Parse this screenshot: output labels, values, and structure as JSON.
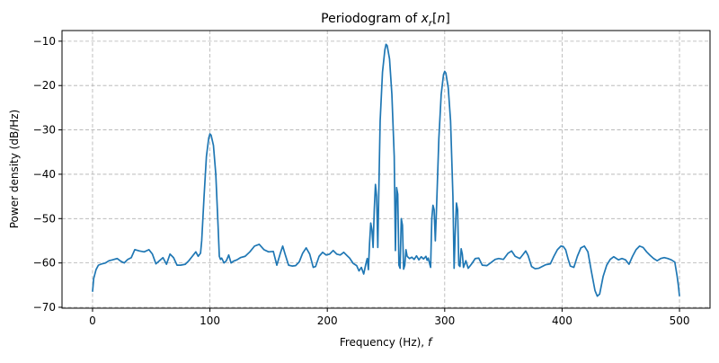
{
  "chart_data": {
    "type": "line",
    "title": "Periodogram of x_r[n]",
    "title_parts": {
      "prefix": "Periodogram of ",
      "var": "x",
      "sub": "r",
      "bracket_open": "[",
      "arg": "n",
      "bracket_close": "]"
    },
    "xlabel": "Frequency (Hz), f",
    "xlabel_parts": {
      "text": "Frequency (Hz), ",
      "var": "f"
    },
    "ylabel": "Power density (dB/Hz)",
    "xlim": [
      -26,
      526
    ],
    "ylim": [
      -70.2,
      -7.6
    ],
    "xticks": [
      0,
      100,
      200,
      300,
      400,
      500
    ],
    "xtick_labels": [
      "0",
      "100",
      "200",
      "300",
      "400",
      "500"
    ],
    "yticks": [
      -10,
      -20,
      -30,
      -40,
      -50,
      -60,
      -70
    ],
    "ytick_labels": [
      "−10",
      "−20",
      "−30",
      "−40",
      "−50",
      "−60",
      "−70"
    ],
    "grid": true,
    "legend": null,
    "series": [
      {
        "name": "Periodogram",
        "color": "#1f77b4",
        "points": [
          [
            0,
            -66.5
          ],
          [
            1,
            -63.5
          ],
          [
            3,
            -61.5
          ],
          [
            5,
            -60.5
          ],
          [
            8,
            -60.2
          ],
          [
            11,
            -60.0
          ],
          [
            14,
            -59.5
          ],
          [
            17,
            -59.3
          ],
          [
            21,
            -59.0
          ],
          [
            24,
            -59.6
          ],
          [
            27,
            -60.0
          ],
          [
            30,
            -59.2
          ],
          [
            33,
            -58.8
          ],
          [
            36,
            -57.0
          ],
          [
            40,
            -57.3
          ],
          [
            44,
            -57.5
          ],
          [
            48,
            -57.0
          ],
          [
            51,
            -58.0
          ],
          [
            54,
            -60.2
          ],
          [
            57,
            -59.5
          ],
          [
            60,
            -58.8
          ],
          [
            63,
            -60.3
          ],
          [
            66,
            -58.0
          ],
          [
            69,
            -58.8
          ],
          [
            72,
            -60.5
          ],
          [
            75,
            -60.5
          ],
          [
            79,
            -60.3
          ],
          [
            82,
            -59.5
          ],
          [
            85,
            -58.5
          ],
          [
            88,
            -57.5
          ],
          [
            90,
            -58.5
          ],
          [
            92,
            -57.8
          ],
          [
            93,
            -55.0
          ],
          [
            95,
            -45.0
          ],
          [
            97,
            -36.0
          ],
          [
            99,
            -31.8
          ],
          [
            100,
            -30.9
          ],
          [
            101,
            -31.2
          ],
          [
            103,
            -33.5
          ],
          [
            105,
            -40.0
          ],
          [
            107,
            -52.0
          ],
          [
            108,
            -58.5
          ],
          [
            109,
            -59.2
          ],
          [
            110,
            -58.9
          ],
          [
            112,
            -60.0
          ],
          [
            114,
            -59.5
          ],
          [
            116,
            -58.2
          ],
          [
            118,
            -60.0
          ],
          [
            120,
            -59.6
          ],
          [
            123,
            -59.3
          ],
          [
            126,
            -58.8
          ],
          [
            130,
            -58.5
          ],
          [
            134,
            -57.5
          ],
          [
            138,
            -56.2
          ],
          [
            142,
            -55.8
          ],
          [
            146,
            -57.0
          ],
          [
            150,
            -57.5
          ],
          [
            154,
            -57.4
          ],
          [
            157,
            -60.5
          ],
          [
            160,
            -57.8
          ],
          [
            162,
            -56.2
          ],
          [
            164,
            -58.0
          ],
          [
            167,
            -60.5
          ],
          [
            170,
            -60.7
          ],
          [
            173,
            -60.6
          ],
          [
            176,
            -59.8
          ],
          [
            179,
            -57.8
          ],
          [
            182,
            -56.6
          ],
          [
            185,
            -58.0
          ],
          [
            188,
            -61.0
          ],
          [
            190,
            -60.8
          ],
          [
            193,
            -58.5
          ],
          [
            196,
            -57.6
          ],
          [
            199,
            -58.2
          ],
          [
            202,
            -58.0
          ],
          [
            205,
            -57.2
          ],
          [
            208,
            -58.0
          ],
          [
            211,
            -58.2
          ],
          [
            214,
            -57.6
          ],
          [
            217,
            -58.4
          ],
          [
            219,
            -58.9
          ],
          [
            222,
            -60.1
          ],
          [
            225,
            -60.6
          ],
          [
            227,
            -61.8
          ],
          [
            229,
            -61.0
          ],
          [
            231,
            -62.5
          ],
          [
            233,
            -60.0
          ],
          [
            234,
            -59.0
          ],
          [
            235,
            -61.5
          ],
          [
            236,
            -55.5
          ],
          [
            237,
            -51.0
          ],
          [
            238,
            -52.5
          ],
          [
            239,
            -56.5
          ],
          [
            240,
            -48.0
          ],
          [
            241,
            -42.3
          ],
          [
            242,
            -45.0
          ],
          [
            243,
            -56.5
          ],
          [
            244,
            -42.0
          ],
          [
            245,
            -28.0
          ],
          [
            247,
            -17.0
          ],
          [
            249,
            -12.0
          ],
          [
            250,
            -10.7
          ],
          [
            251,
            -11.0
          ],
          [
            253,
            -14.0
          ],
          [
            255,
            -22.0
          ],
          [
            257,
            -36.0
          ],
          [
            258,
            -57.2
          ],
          [
            259,
            -43.0
          ],
          [
            260,
            -44.5
          ],
          [
            261,
            -60.5
          ],
          [
            262,
            -61.2
          ],
          [
            263,
            -50.0
          ],
          [
            264,
            -51.5
          ],
          [
            265,
            -61.4
          ],
          [
            266,
            -60.5
          ],
          [
            267,
            -57.0
          ],
          [
            268,
            -58.5
          ],
          [
            270,
            -59.0
          ],
          [
            272,
            -58.7
          ],
          [
            274,
            -59.2
          ],
          [
            276,
            -58.4
          ],
          [
            278,
            -59.3
          ],
          [
            280,
            -58.6
          ],
          [
            282,
            -59.1
          ],
          [
            284,
            -58.5
          ],
          [
            285,
            -59.4
          ],
          [
            286,
            -58.9
          ],
          [
            287,
            -60.0
          ],
          [
            288,
            -61.0
          ],
          [
            289,
            -50.0
          ],
          [
            290,
            -47.0
          ],
          [
            291,
            -48.0
          ],
          [
            292,
            -55.0
          ],
          [
            293,
            -48.0
          ],
          [
            295,
            -32.0
          ],
          [
            297,
            -22.0
          ],
          [
            299,
            -17.5
          ],
          [
            300,
            -16.8
          ],
          [
            301,
            -17.2
          ],
          [
            303,
            -20.5
          ],
          [
            305,
            -28.0
          ],
          [
            307,
            -45.0
          ],
          [
            308,
            -61.2
          ],
          [
            309,
            -53.0
          ],
          [
            310,
            -46.5
          ],
          [
            311,
            -48.0
          ],
          [
            312,
            -60.5
          ],
          [
            313,
            -60.8
          ],
          [
            314,
            -56.8
          ],
          [
            315,
            -58.0
          ],
          [
            316,
            -61.0
          ],
          [
            318,
            -59.5
          ],
          [
            320,
            -61.2
          ],
          [
            323,
            -60.2
          ],
          [
            326,
            -59.0
          ],
          [
            329,
            -58.9
          ],
          [
            332,
            -60.5
          ],
          [
            336,
            -60.6
          ],
          [
            340,
            -59.8
          ],
          [
            343,
            -59.2
          ],
          [
            346,
            -59.0
          ],
          [
            350,
            -59.2
          ],
          [
            354,
            -57.8
          ],
          [
            357,
            -57.3
          ],
          [
            360,
            -58.5
          ],
          [
            364,
            -59.0
          ],
          [
            367,
            -58.0
          ],
          [
            369,
            -57.3
          ],
          [
            371,
            -58.3
          ],
          [
            374,
            -60.8
          ],
          [
            377,
            -61.3
          ],
          [
            380,
            -61.2
          ],
          [
            383,
            -60.8
          ],
          [
            386,
            -60.4
          ],
          [
            390,
            -60.2
          ],
          [
            393,
            -58.5
          ],
          [
            396,
            -57.0
          ],
          [
            399,
            -56.2
          ],
          [
            401,
            -56.3
          ],
          [
            403,
            -57.0
          ],
          [
            405,
            -59.0
          ],
          [
            407,
            -60.7
          ],
          [
            410,
            -61.0
          ],
          [
            413,
            -58.5
          ],
          [
            416,
            -56.6
          ],
          [
            419,
            -56.2
          ],
          [
            422,
            -57.5
          ],
          [
            425,
            -62.0
          ],
          [
            428,
            -66.2
          ],
          [
            430,
            -67.5
          ],
          [
            432,
            -67.0
          ],
          [
            435,
            -63.0
          ],
          [
            438,
            -60.5
          ],
          [
            441,
            -59.2
          ],
          [
            444,
            -58.6
          ],
          [
            448,
            -59.3
          ],
          [
            451,
            -59.0
          ],
          [
            454,
            -59.3
          ],
          [
            457,
            -60.3
          ],
          [
            460,
            -58.5
          ],
          [
            463,
            -57.0
          ],
          [
            466,
            -56.2
          ],
          [
            469,
            -56.5
          ],
          [
            472,
            -57.5
          ],
          [
            475,
            -58.3
          ],
          [
            478,
            -59.0
          ],
          [
            481,
            -59.5
          ],
          [
            484,
            -59.0
          ],
          [
            487,
            -58.8
          ],
          [
            490,
            -59.0
          ],
          [
            493,
            -59.3
          ],
          [
            496,
            -59.8
          ],
          [
            498,
            -63.0
          ],
          [
            499,
            -65.0
          ],
          [
            500,
            -67.5
          ]
        ]
      }
    ]
  }
}
